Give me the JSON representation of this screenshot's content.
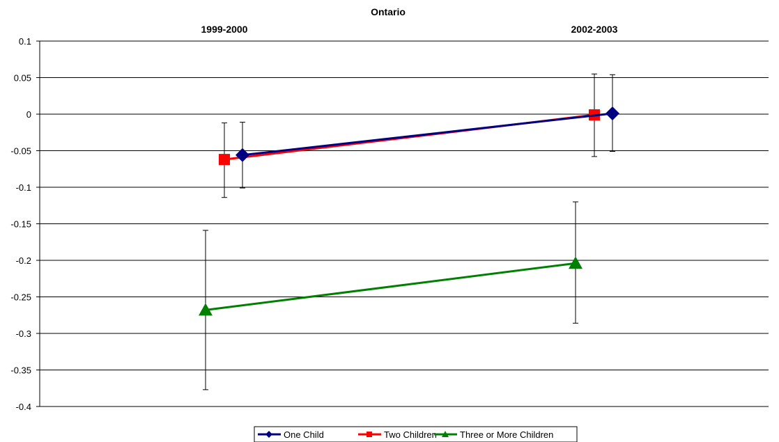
{
  "chart_data": {
    "type": "line",
    "title": "Ontario",
    "categories": [
      "1999-2000",
      "2002-2003"
    ],
    "ylim": [
      -0.4,
      0.1
    ],
    "yticks": [
      0.1,
      0.05,
      0,
      -0.05,
      -0.1,
      -0.15,
      -0.2,
      -0.25,
      -0.3,
      -0.35,
      -0.4
    ],
    "ytick_labels": [
      "0.1",
      "0.05",
      "0",
      "-0.05",
      "-0.1",
      "-0.15",
      "-0.2",
      "-0.25",
      "-0.3",
      "-0.35",
      "-0.4"
    ],
    "grid": true,
    "legend_position": "bottom",
    "series": [
      {
        "name": "One Child",
        "color": "#000080",
        "marker": "diamond",
        "values": [
          -0.056,
          0.001
        ],
        "error_low": [
          -0.101,
          -0.051
        ],
        "error_high": [
          -0.011,
          0.054
        ]
      },
      {
        "name": "Two Children",
        "color": "#ff0000",
        "marker": "square",
        "values": [
          -0.062,
          -0.001
        ],
        "error_low": [
          -0.114,
          -0.058
        ],
        "error_high": [
          -0.012,
          0.055
        ]
      },
      {
        "name": "Three or More Children",
        "color": "#008000",
        "marker": "triangle",
        "values": [
          -0.268,
          -0.204
        ],
        "error_low": [
          -0.377,
          -0.286
        ],
        "error_high": [
          -0.159,
          -0.12
        ]
      }
    ]
  }
}
